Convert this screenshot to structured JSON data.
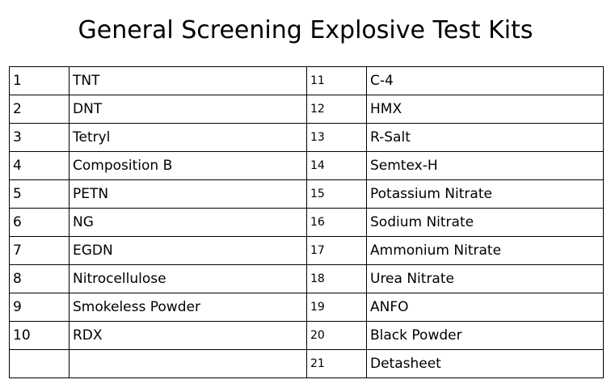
{
  "title": "General Screening Explosive Test Kits",
  "rows": [
    {
      "left_num": "1",
      "left_name": "TNT",
      "right_num": "11",
      "right_name": "C-4"
    },
    {
      "left_num": "2",
      "left_name": "DNT",
      "right_num": "12",
      "right_name": "HMX"
    },
    {
      "left_num": "3",
      "left_name": "Tetryl",
      "right_num": "13",
      "right_name": "R-Salt"
    },
    {
      "left_num": "4",
      "left_name": "Composition B",
      "right_num": "14",
      "right_name": "Semtex-H"
    },
    {
      "left_num": "5",
      "left_name": "PETN",
      "right_num": "15",
      "right_name": "Potassium Nitrate"
    },
    {
      "left_num": "6",
      "left_name": "NG",
      "right_num": "16",
      "right_name": "Sodium Nitrate"
    },
    {
      "left_num": "7",
      "left_name": "EGDN",
      "right_num": "17",
      "right_name": "Ammonium Nitrate"
    },
    {
      "left_num": "8",
      "left_name": "Nitrocellulose",
      "right_num": "18",
      "right_name": "Urea Nitrate"
    },
    {
      "left_num": "9",
      "left_name": "Smokeless Powder",
      "right_num": "19",
      "right_name": "ANFO"
    },
    {
      "left_num": "10",
      "left_name": "RDX",
      "right_num": "20",
      "right_name": "Black Powder"
    },
    {
      "left_num": "",
      "left_name": "",
      "right_num": "21",
      "right_name": "Detasheet"
    }
  ]
}
